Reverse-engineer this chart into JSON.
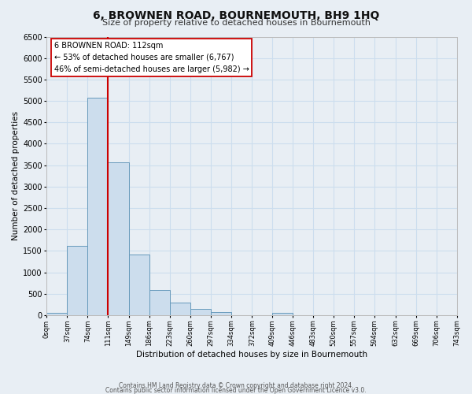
{
  "title": "6, BROWNEN ROAD, BOURNEMOUTH, BH9 1HQ",
  "subtitle": "Size of property relative to detached houses in Bournemouth",
  "xlabel": "Distribution of detached houses by size in Bournemouth",
  "ylabel": "Number of detached properties",
  "footnote1": "Contains HM Land Registry data © Crown copyright and database right 2024.",
  "footnote2": "Contains public sector information licensed under the Open Government Licence v3.0.",
  "bin_edges": [
    0,
    37,
    74,
    111,
    149,
    186,
    223,
    260,
    297,
    334,
    372,
    409,
    446,
    483,
    520,
    557,
    594,
    632,
    669,
    706,
    743
  ],
  "bin_labels": [
    "0sqm",
    "37sqm",
    "74sqm",
    "111sqm",
    "149sqm",
    "186sqm",
    "223sqm",
    "260sqm",
    "297sqm",
    "334sqm",
    "372sqm",
    "409sqm",
    "446sqm",
    "483sqm",
    "520sqm",
    "557sqm",
    "594sqm",
    "632sqm",
    "669sqm",
    "706sqm",
    "743sqm"
  ],
  "bar_heights": [
    55,
    1620,
    5080,
    3570,
    1420,
    580,
    295,
    145,
    65,
    0,
    0,
    55,
    0,
    0,
    0,
    0,
    0,
    0,
    0,
    0
  ],
  "bar_color": "#ccdded",
  "bar_edge_color": "#6699bb",
  "vline_x": 111,
  "vline_color": "#cc0000",
  "annotation_title": "6 BROWNEN ROAD: 112sqm",
  "annotation_line1": "← 53% of detached houses are smaller (6,767)",
  "annotation_line2": "46% of semi-detached houses are larger (5,982) →",
  "annotation_box_color": "#ffffff",
  "annotation_box_edge": "#cc0000",
  "ylim": [
    0,
    6500
  ],
  "yticks": [
    0,
    500,
    1000,
    1500,
    2000,
    2500,
    3000,
    3500,
    4000,
    4500,
    5000,
    5500,
    6000,
    6500
  ],
  "grid_color": "#ccddee",
  "background_color": "#e8eef4"
}
